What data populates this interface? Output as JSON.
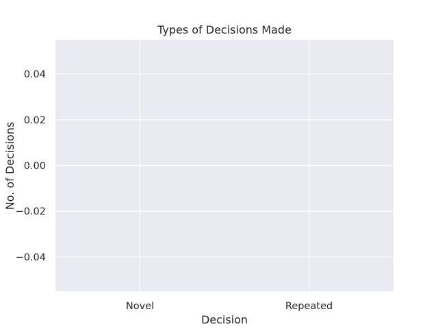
{
  "chart_data": {
    "type": "bar",
    "title": "Types of Decisions Made",
    "xlabel": "Decision",
    "ylabel": "No. of Decisions",
    "categories": [
      "Novel",
      "Repeated"
    ],
    "values": [
      0,
      0
    ],
    "ylim": [
      -0.055,
      0.055
    ],
    "yticks": [
      -0.04,
      -0.02,
      0.0,
      0.02,
      0.04
    ],
    "ytick_labels": [
      "−0.04",
      "−0.02",
      "0.00",
      "0.02",
      "0.04"
    ],
    "grid": true,
    "colors": {
      "plot_background": "#eaeaf2",
      "gridline": "#ffffff",
      "text": "#262626"
    }
  }
}
